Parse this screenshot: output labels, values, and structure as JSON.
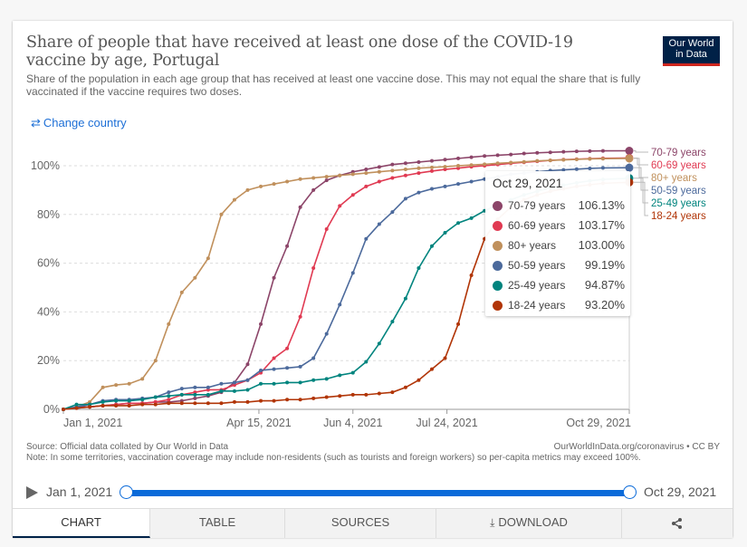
{
  "header": {
    "title": "Share of people that have received at least one dose of the COVID-19 vaccine by age, Portugal",
    "subtitle": "Share of the population in each age group that has received at least one vaccine dose. This may not equal the share that is fully vaccinated if the vaccine requires two doses.",
    "logo_line1": "Our World",
    "logo_line2": "in Data",
    "change_country_icon": "swap-arrows-icon",
    "change_country_label": "Change country"
  },
  "chart_data": {
    "type": "line",
    "title": "Share of people that have received at least one dose of the COVID-19 vaccine by age, Portugal",
    "xlabel": "",
    "ylabel": "",
    "x_start": "2021-01-01",
    "x_end": "2021-10-29",
    "x_step_days": 7,
    "xlim_days": [
      0,
      301
    ],
    "ylim": [
      0,
      100
    ],
    "y_ticks": [
      "0%",
      "20%",
      "40%",
      "60%",
      "80%",
      "100%"
    ],
    "y_tick_values": [
      0,
      20,
      40,
      60,
      80,
      100
    ],
    "x_ticks": [
      "Jan 1, 2021",
      "Apr 15, 2021",
      "Jun 4, 2021",
      "Jul 24, 2021",
      "Oct 29, 2021"
    ],
    "x_tick_days": [
      0,
      104,
      154,
      204,
      301
    ],
    "grid": true,
    "legend": "right",
    "series": [
      {
        "name": "70-79 years",
        "color": "#8c4569",
        "final": "106.13%",
        "values": [
          0,
          1,
          1,
          1.5,
          2,
          2.5,
          2.5,
          3,
          3,
          3.5,
          4.5,
          5.5,
          7,
          11,
          18.5,
          35,
          54,
          67,
          83,
          90,
          94,
          96,
          97.5,
          98.5,
          99.5,
          100.5,
          101,
          101.5,
          102,
          102.5,
          103,
          103.5,
          104,
          104.3,
          104.6,
          105,
          105.3,
          105.5,
          105.7,
          105.9,
          106,
          106.1,
          106.13
        ]
      },
      {
        "name": "60-69 years",
        "color": "#e03a52",
        "final": "103.17%",
        "values": [
          0,
          0.5,
          1,
          1.5,
          2,
          2.5,
          2.5,
          3,
          4,
          6,
          7,
          8,
          8,
          10,
          12,
          15,
          21,
          25,
          38,
          58,
          74,
          83.5,
          88,
          91.5,
          93.5,
          95,
          96,
          97,
          97.8,
          98.5,
          99,
          99.6,
          100,
          100.5,
          101,
          101.4,
          101.8,
          102.2,
          102.5,
          102.7,
          102.9,
          103.05,
          103.17
        ]
      },
      {
        "name": "80+ years",
        "color": "#c0905c",
        "final": "103.00%",
        "values": [
          0,
          1,
          3,
          9,
          10,
          10.5,
          12.5,
          20,
          35,
          48,
          54,
          62,
          80,
          86,
          90,
          91.5,
          92.5,
          93.5,
          94.5,
          95,
          95.5,
          96,
          96.5,
          97,
          97.5,
          98,
          98.5,
          99,
          99.3,
          99.6,
          100,
          100.3,
          100.6,
          101,
          101.3,
          101.6,
          102,
          102.2,
          102.4,
          102.6,
          102.8,
          102.9,
          103.0
        ]
      },
      {
        "name": "50-59 years",
        "color": "#4c6a9c",
        "final": "99.19%",
        "values": [
          0,
          1,
          2,
          3.5,
          4,
          4,
          4.5,
          5,
          7,
          8.5,
          9,
          9,
          10.5,
          11,
          12,
          16,
          16.5,
          17,
          17.5,
          21,
          31,
          43,
          56,
          70,
          76,
          81,
          86.5,
          89,
          90.5,
          91.5,
          92.5,
          93.5,
          94.5,
          95.5,
          96.5,
          97,
          97.5,
          98,
          98.3,
          98.6,
          98.9,
          99.1,
          99.19
        ]
      },
      {
        "name": "25-49 years",
        "color": "#00847e",
        "final": "94.87%",
        "values": [
          0,
          2,
          2,
          3,
          3.5,
          3.5,
          4,
          5,
          5.5,
          6,
          6,
          6,
          7.5,
          7.5,
          8,
          10.5,
          10.5,
          11,
          11,
          12,
          12.5,
          14,
          15,
          19.5,
          27,
          36,
          45.5,
          58,
          67,
          72.5,
          76.5,
          78.5,
          81.5,
          84,
          86,
          88,
          89.5,
          91,
          92,
          93,
          93.8,
          94.4,
          94.87
        ]
      },
      {
        "name": "18-24 years",
        "color": "#b13507",
        "final": "93.20%",
        "values": [
          0,
          0.5,
          1,
          1.5,
          1.5,
          1.5,
          2,
          2,
          2.5,
          2.5,
          2.5,
          2.5,
          2.5,
          3,
          3,
          3.5,
          3.5,
          4,
          4,
          4.5,
          5,
          5.5,
          6,
          6,
          6.5,
          7,
          9,
          12,
          16.5,
          21,
          35,
          55,
          70,
          78,
          83,
          86,
          88,
          89.5,
          90.5,
          91.5,
          92.2,
          92.8,
          93.2
        ]
      }
    ]
  },
  "tooltip": {
    "date": "Oct 29, 2021",
    "rows": [
      {
        "label": "70-79 years",
        "value": "106.13%",
        "color": "#8c4569"
      },
      {
        "label": "60-69 years",
        "value": "103.17%",
        "color": "#e03a52"
      },
      {
        "label": "80+ years",
        "value": "103.00%",
        "color": "#c0905c"
      },
      {
        "label": "50-59 years",
        "value": "99.19%",
        "color": "#4c6a9c"
      },
      {
        "label": "25-49 years",
        "value": "94.87%",
        "color": "#00847e"
      },
      {
        "label": "18-24 years",
        "value": "93.20%",
        "color": "#b13507"
      }
    ]
  },
  "footer": {
    "source": "Source: Official data collated by Our World in Data",
    "note": "Note: In some territories, vaccination coverage may include non-residents (such as tourists and foreign workers) so per-capita metrics may exceed 100%.",
    "url": "OurWorldInData.org/coronavirus • CC BY"
  },
  "timeline": {
    "start_label": "Jan 1, 2021",
    "end_label": "Oct 29, 2021",
    "range_start_fraction": 0,
    "range_end_fraction": 1
  },
  "tabs": [
    {
      "label": "CHART",
      "active": true
    },
    {
      "label": "TABLE",
      "active": false
    },
    {
      "label": "SOURCES",
      "active": false
    },
    {
      "label": "DOWNLOAD",
      "active": false,
      "icon": "download-icon"
    },
    {
      "label": "",
      "active": false,
      "icon": "share-icon"
    }
  ],
  "colors": {
    "accent": "#0a6ad9",
    "brand": "#002147",
    "brand_red": "#ce261e",
    "link": "#1d6fd6"
  }
}
